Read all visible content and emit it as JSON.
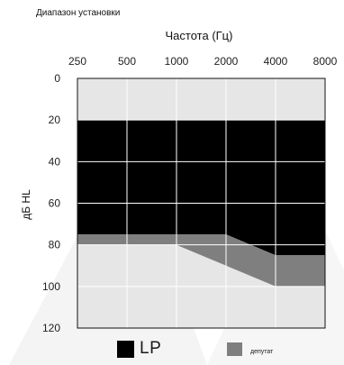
{
  "caption": "Диапазон установки",
  "colors": {
    "lp_region": "#000000",
    "deputy_region": "#7f7f7f",
    "plot_background": "#e6e6e6",
    "grid": "#ffffff"
  },
  "legend": [
    {
      "label": "LP",
      "color": "#000000"
    },
    {
      "label": "депутат",
      "color": "#7f7f7f"
    }
  ],
  "chart_data": {
    "type": "area",
    "title": "",
    "xlabel": "Частота (Гц)",
    "ylabel": "дБ HL",
    "x_axis_position": "top",
    "x_scale": "log2 (octave steps)",
    "y_inverted": true,
    "x": [
      250,
      500,
      1000,
      2000,
      4000,
      8000
    ],
    "x_tick_labels": [
      "250",
      "500",
      "1000",
      "2000",
      "4000",
      "8000"
    ],
    "y_ticks": [
      0,
      20,
      40,
      60,
      80,
      100,
      120
    ],
    "y_tick_labels": [
      "0",
      "20",
      "40",
      "60",
      "80",
      "100",
      "120"
    ],
    "ylim": [
      0,
      120
    ],
    "grid": true,
    "legend_position": "bottom",
    "series": [
      {
        "name": "LP",
        "points": [
          [
            250,
            20
          ],
          [
            8000,
            20
          ],
          [
            8000,
            85
          ],
          [
            4000,
            85
          ],
          [
            2000,
            75
          ],
          [
            250,
            75
          ]
        ]
      },
      {
        "name": "депутат",
        "points": [
          [
            250,
            75
          ],
          [
            2000,
            75
          ],
          [
            4000,
            85
          ],
          [
            8000,
            85
          ],
          [
            8000,
            100
          ],
          [
            4000,
            100
          ],
          [
            1000,
            80
          ],
          [
            250,
            80
          ]
        ]
      }
    ]
  }
}
